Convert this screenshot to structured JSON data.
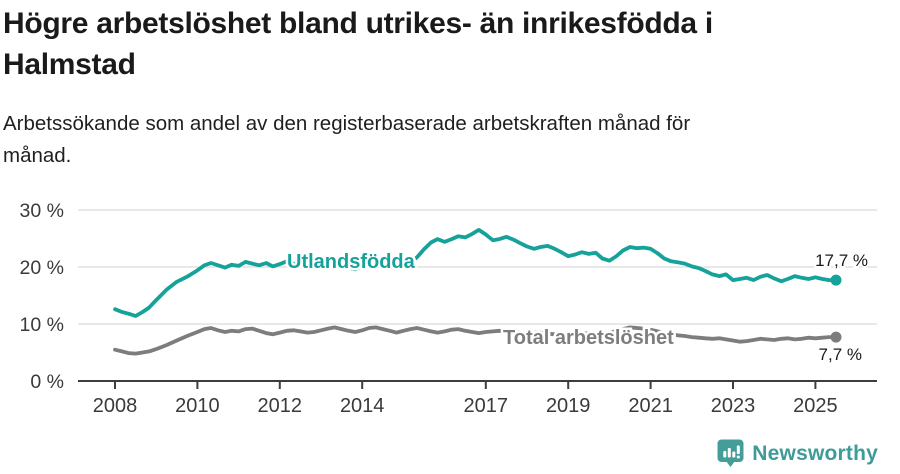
{
  "title": "Högre arbetslöshet bland utrikes- än inrikesfödda i Halmstad",
  "subtitle": "Arbetssökande som andel av den registerbaserade arbetskraften månad för månad.",
  "branding": {
    "logo_text": "Newsworthy",
    "icon": "newsworthy-pin-chart-icon",
    "color": "#3d9c98"
  },
  "colors": {
    "accent_teal": "#14a29a",
    "series_gray": "#7d7d7d",
    "grid": "#d9d9d9",
    "axis": "#3d3d3d",
    "axis_text": "#3a3a3a",
    "value_text": "#1a1a1a",
    "title_text": "#1a1a1a"
  },
  "chart_data": {
    "type": "line",
    "unit": "%",
    "ylim": [
      0,
      30
    ],
    "grid": "horizontal",
    "legend_position": "inline-labels",
    "yticks": [
      {
        "value": 0,
        "label": "0 %"
      },
      {
        "value": 10,
        "label": "10 %"
      },
      {
        "value": 20,
        "label": "20 %"
      },
      {
        "value": 30,
        "label": "30 %"
      }
    ],
    "xticks": [
      {
        "value": 2008,
        "label": "2008"
      },
      {
        "value": 2010,
        "label": "2010"
      },
      {
        "value": 2012,
        "label": "2012"
      },
      {
        "value": 2014,
        "label": "2014"
      },
      {
        "value": 2017,
        "label": "2017"
      },
      {
        "value": 2019,
        "label": "2019"
      },
      {
        "value": 2021,
        "label": "2021"
      },
      {
        "value": 2023,
        "label": "2023"
      },
      {
        "value": 2025,
        "label": "2025"
      }
    ],
    "x": [
      2008,
      2008.17,
      2008.33,
      2008.5,
      2008.67,
      2008.83,
      2009,
      2009.25,
      2009.5,
      2009.75,
      2010,
      2010.17,
      2010.33,
      2010.5,
      2010.67,
      2010.83,
      2011,
      2011.17,
      2011.33,
      2011.5,
      2011.67,
      2011.83,
      2012,
      2012.17,
      2012.33,
      2012.5,
      2012.67,
      2012.83,
      2013,
      2013.17,
      2013.33,
      2013.5,
      2013.67,
      2013.83,
      2014,
      2014.17,
      2014.33,
      2014.5,
      2014.67,
      2014.83,
      2015,
      2015.17,
      2015.33,
      2015.5,
      2015.67,
      2015.83,
      2016,
      2016.17,
      2016.33,
      2016.5,
      2016.67,
      2016.83,
      2017,
      2017.17,
      2017.33,
      2017.5,
      2017.67,
      2017.83,
      2018,
      2018.17,
      2018.33,
      2018.5,
      2018.67,
      2018.83,
      2019,
      2019.17,
      2019.33,
      2019.5,
      2019.67,
      2019.83,
      2020,
      2020.17,
      2020.33,
      2020.5,
      2020.67,
      2020.83,
      2021,
      2021.17,
      2021.33,
      2021.5,
      2021.67,
      2021.83,
      2022,
      2022.17,
      2022.33,
      2022.5,
      2022.67,
      2022.83,
      2023,
      2023.17,
      2023.33,
      2023.5,
      2023.67,
      2023.83,
      2024,
      2024.17,
      2024.33,
      2024.5,
      2024.67,
      2024.83,
      2025,
      2025.17,
      2025.33,
      2025.5
    ],
    "series": [
      {
        "name": "Utlandsfödda",
        "slug": "utlandsfodda",
        "color": "#14a29a",
        "end_label": "17,7 %",
        "end_value": 17.7,
        "values": [
          12.6,
          12.1,
          11.8,
          11.4,
          12.1,
          12.9,
          14.2,
          16.0,
          17.4,
          18.3,
          19.4,
          20.3,
          20.7,
          20.3,
          19.9,
          20.4,
          20.2,
          20.9,
          20.6,
          20.3,
          20.7,
          20.1,
          20.5,
          21.0,
          20.6,
          20.2,
          19.8,
          20.2,
          20.6,
          21.1,
          20.7,
          20.3,
          19.9,
          19.6,
          20.1,
          20.7,
          20.9,
          20.4,
          20.0,
          19.7,
          20.3,
          20.9,
          21.7,
          23.1,
          24.3,
          24.9,
          24.4,
          24.9,
          25.4,
          25.2,
          25.8,
          26.5,
          25.7,
          24.7,
          24.9,
          25.3,
          24.8,
          24.2,
          23.6,
          23.2,
          23.5,
          23.7,
          23.2,
          22.6,
          21.9,
          22.2,
          22.6,
          22.3,
          22.5,
          21.5,
          21.1,
          21.9,
          22.9,
          23.5,
          23.3,
          23.4,
          23.2,
          22.4,
          21.5,
          21.0,
          20.8,
          20.6,
          20.1,
          19.8,
          19.3,
          18.7,
          18.4,
          18.7,
          17.7,
          17.9,
          18.1,
          17.7,
          18.3,
          18.6,
          18.0,
          17.5,
          17.9,
          18.4,
          18.1,
          17.9,
          18.2,
          17.9,
          17.7,
          17.7
        ]
      },
      {
        "name": "Total arbetslöshet",
        "slug": "total-arbetsloshet",
        "color": "#7d7d7d",
        "end_label": "7,7 %",
        "end_value": 7.7,
        "values": [
          5.5,
          5.2,
          4.9,
          4.8,
          5.0,
          5.2,
          5.6,
          6.3,
          7.1,
          7.9,
          8.6,
          9.1,
          9.3,
          8.9,
          8.6,
          8.8,
          8.7,
          9.1,
          9.2,
          8.8,
          8.4,
          8.2,
          8.5,
          8.8,
          8.9,
          8.7,
          8.5,
          8.6,
          8.9,
          9.2,
          9.4,
          9.1,
          8.8,
          8.6,
          8.9,
          9.3,
          9.4,
          9.1,
          8.8,
          8.5,
          8.8,
          9.1,
          9.3,
          9.0,
          8.7,
          8.5,
          8.7,
          9.0,
          9.1,
          8.8,
          8.6,
          8.4,
          8.6,
          8.7,
          8.8,
          8.7,
          8.6,
          8.5,
          8.4,
          8.5,
          8.5,
          8.3,
          8.2,
          8.1,
          8.2,
          8.3,
          8.4,
          8.3,
          8.2,
          8.1,
          8.4,
          8.8,
          9.1,
          9.4,
          9.3,
          9.2,
          9.0,
          8.7,
          8.4,
          8.2,
          8.0,
          7.9,
          7.7,
          7.6,
          7.5,
          7.4,
          7.5,
          7.3,
          7.1,
          6.9,
          7.0,
          7.2,
          7.4,
          7.3,
          7.2,
          7.4,
          7.5,
          7.3,
          7.4,
          7.6,
          7.5,
          7.6,
          7.7,
          7.7
        ]
      }
    ]
  }
}
